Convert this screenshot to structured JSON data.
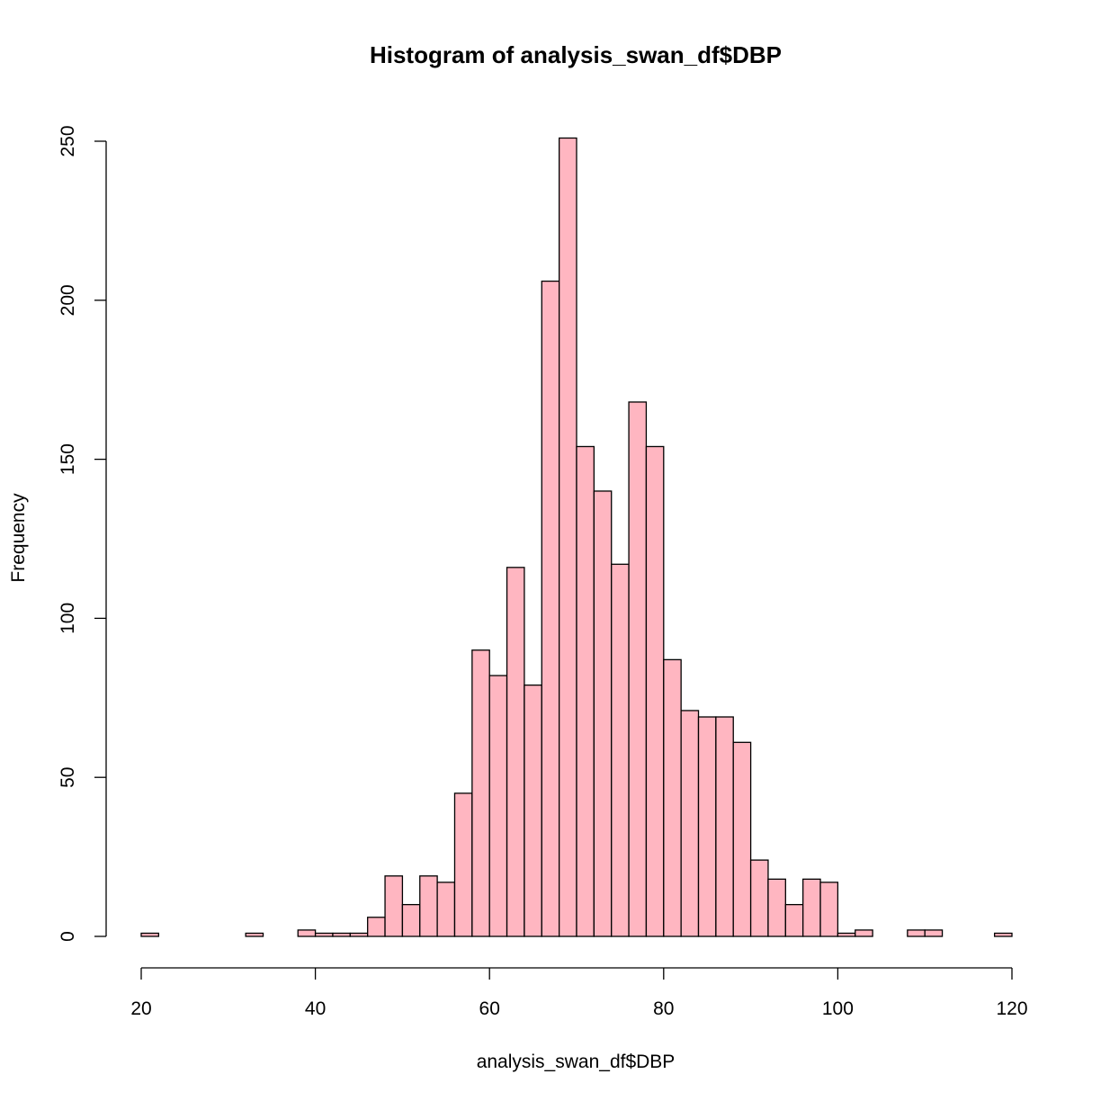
{
  "chart_data": {
    "type": "bar",
    "title": "Histogram of analysis_swan_df$DBP",
    "xlabel": "analysis_swan_df$DBP",
    "ylabel": "Frequency",
    "bar_color": "#FFB6C1",
    "border_color": "#000000",
    "bin_width": 2,
    "bin_start": 20,
    "xlim": [
      20,
      120
    ],
    "ylim": [
      0,
      250
    ],
    "x_ticks": [
      20,
      40,
      60,
      80,
      100,
      120
    ],
    "y_ticks": [
      0,
      50,
      100,
      150,
      200,
      250
    ],
    "values": [
      1,
      0,
      0,
      0,
      0,
      0,
      1,
      0,
      0,
      2,
      1,
      1,
      1,
      6,
      19,
      10,
      19,
      17,
      45,
      90,
      82,
      116,
      79,
      206,
      251,
      154,
      140,
      117,
      168,
      154,
      87,
      71,
      69,
      69,
      61,
      24,
      18,
      10,
      18,
      17,
      1,
      2,
      0,
      0,
      2,
      2,
      0,
      0,
      0,
      1
    ],
    "grid": false
  }
}
